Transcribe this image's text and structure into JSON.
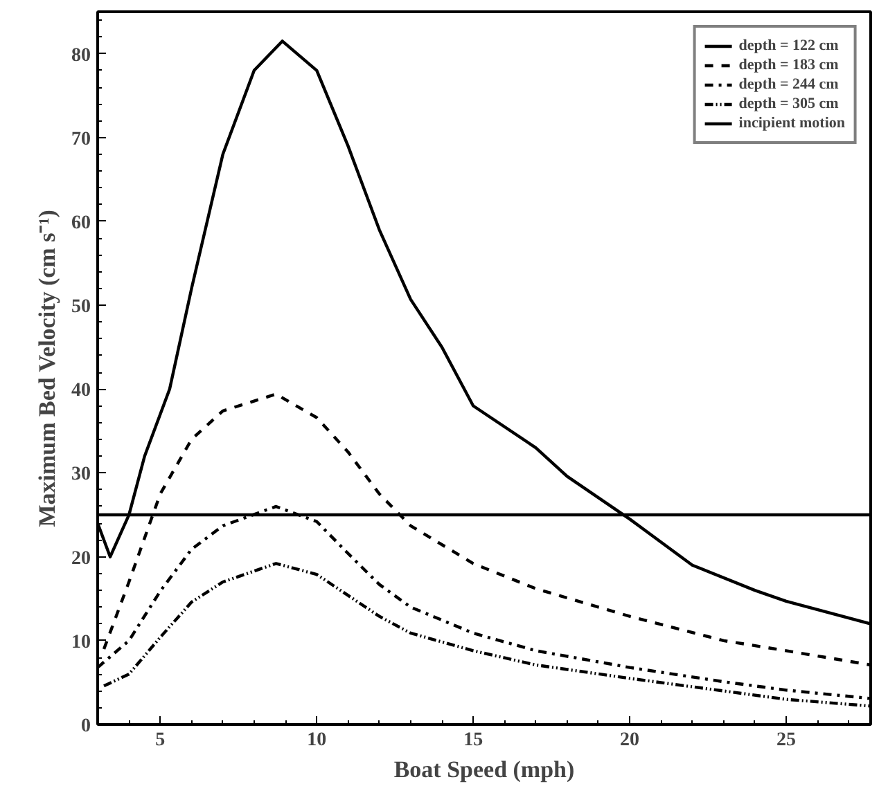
{
  "chart_data": {
    "type": "line",
    "xlabel": "Boat Speed (mph)",
    "ylabel": "Maximum Bed Velocity (cm s⁻¹)",
    "xlim": [
      3,
      27.7
    ],
    "ylim": [
      0,
      85
    ],
    "xticks": [
      5,
      10,
      15,
      20,
      25
    ],
    "yticks": [
      0,
      10,
      20,
      30,
      40,
      50,
      60,
      70,
      80
    ],
    "grid": false,
    "legend": "top right",
    "marker": "none",
    "series": [
      {
        "name": "depth = 122 cm",
        "color": "#000000",
        "line_style": "solid",
        "x": [
          3,
          3.4,
          4,
          4.5,
          5.3,
          6,
          7,
          8,
          8.9,
          10,
          11,
          12,
          13,
          14,
          15,
          17,
          18,
          20,
          22,
          24,
          25,
          27.7
        ],
        "values": [
          24,
          20,
          25,
          32,
          40,
          52,
          68,
          78,
          81.5,
          78,
          69,
          59,
          50.7,
          45,
          38,
          33,
          29.6,
          24.5,
          19,
          16,
          14.7,
          12
        ]
      },
      {
        "name": "depth = 183 cm",
        "color": "#000000",
        "line_style": "dashed",
        "x": [
          3.2,
          4,
          5,
          6,
          7,
          8.7,
          10,
          11,
          12,
          13,
          15,
          17,
          20,
          23,
          25,
          27.7
        ],
        "values": [
          9,
          17,
          27.5,
          34,
          37.4,
          39.4,
          36.6,
          32.5,
          27.5,
          23.7,
          19.2,
          16.2,
          12.9,
          10,
          8.8,
          7.1
        ]
      },
      {
        "name": "depth = 244 cm",
        "color": "#000000",
        "line_style": "dashdot",
        "x": [
          3,
          4,
          5,
          6,
          7,
          8.7,
          10,
          11,
          12,
          13,
          15,
          17,
          20,
          23,
          25,
          27.7
        ],
        "values": [
          6.8,
          10,
          15.9,
          20.9,
          23.7,
          26,
          24.2,
          20.4,
          16.7,
          14,
          10.9,
          8.8,
          6.8,
          5.1,
          4.1,
          3.1
        ]
      },
      {
        "name": "depth = 305 cm",
        "color": "#000000",
        "line_style": "dotdash",
        "x": [
          3.2,
          4,
          5,
          6,
          7,
          8.7,
          10,
          11,
          12,
          13,
          15,
          17,
          20,
          23,
          25,
          27.7
        ],
        "values": [
          4.6,
          6,
          10.4,
          14.6,
          17,
          19.2,
          17.9,
          15.4,
          12.9,
          10.9,
          8.8,
          7.1,
          5.5,
          4,
          3,
          2.2
        ]
      },
      {
        "name": "incipient motion",
        "color": "#000000",
        "line_style": "solid",
        "x": [
          3,
          27.7
        ],
        "values": [
          25,
          25
        ]
      }
    ]
  }
}
